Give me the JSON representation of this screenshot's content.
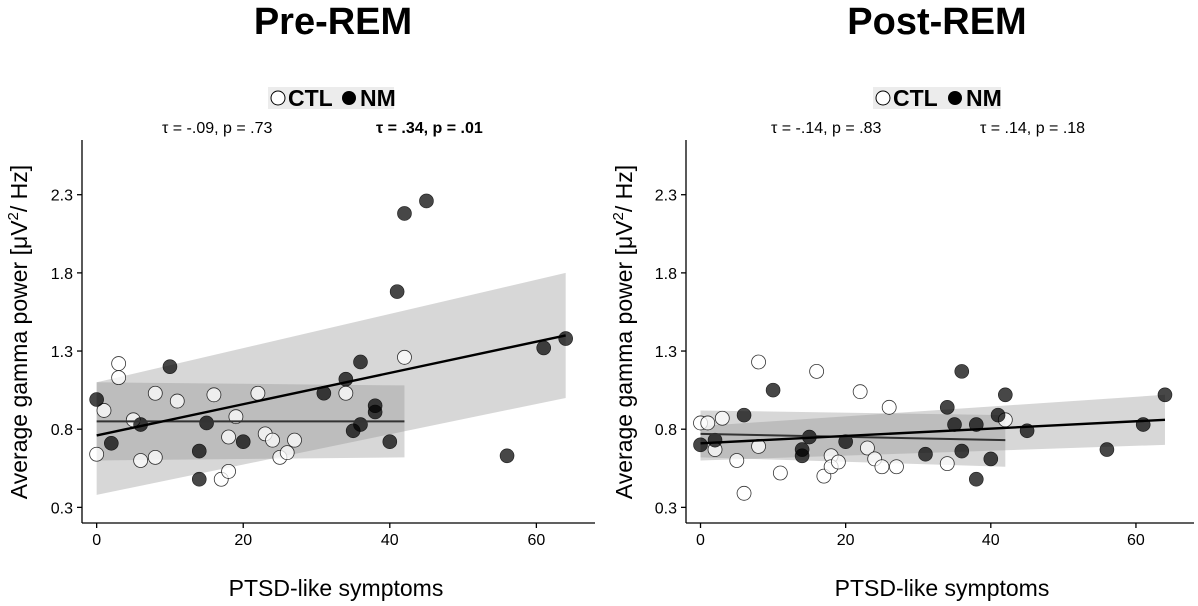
{
  "chart_data": [
    {
      "type": "scatter",
      "title": "Pre-REM",
      "xlabel": "PTSD-like symptoms",
      "ylabel_main": "Average gamma power [μV",
      "ylabel_sup": "2",
      "ylabel_tail": "/ Hz]",
      "xlim": [
        -2,
        68
      ],
      "ylim": [
        0.2,
        2.65
      ],
      "xticks": [
        0,
        20,
        40,
        60
      ],
      "yticks": [
        0.3,
        0.8,
        1.3,
        1.8,
        2.3
      ],
      "grid": false,
      "legend": {
        "position": "top-center",
        "entries": [
          {
            "label": "CTL",
            "marker": "open-circle"
          },
          {
            "label": "NM",
            "marker": "filled-circle"
          }
        ]
      },
      "annotations": [
        {
          "text": "τ = -.09, p = .73",
          "bold": false,
          "series": "CTL"
        },
        {
          "text": "τ = .34, p = .01",
          "bold": true,
          "series": "NM"
        }
      ],
      "series": [
        {
          "name": "CTL",
          "marker": "open",
          "points": [
            [
              0,
              0.64
            ],
            [
              1,
              0.92
            ],
            [
              3,
              1.13
            ],
            [
              3,
              1.22
            ],
            [
              5,
              0.86
            ],
            [
              6,
              0.6
            ],
            [
              8,
              1.03
            ],
            [
              8,
              0.62
            ],
            [
              11,
              0.98
            ],
            [
              16,
              1.02
            ],
            [
              17,
              0.48
            ],
            [
              18,
              0.53
            ],
            [
              18,
              0.75
            ],
            [
              19,
              0.88
            ],
            [
              22,
              1.03
            ],
            [
              23,
              0.77
            ],
            [
              24,
              0.73
            ],
            [
              25,
              0.62
            ],
            [
              26,
              0.65
            ],
            [
              27,
              0.73
            ],
            [
              34,
              1.03
            ],
            [
              42,
              1.26
            ]
          ],
          "fit": {
            "x": [
              0,
              42
            ],
            "y": [
              0.85,
              0.85
            ]
          },
          "ci_lower": [
            0.6,
            0.62
          ],
          "ci_upper": [
            1.1,
            1.08
          ]
        },
        {
          "name": "NM",
          "marker": "filled",
          "points": [
            [
              0,
              0.99
            ],
            [
              2,
              0.71
            ],
            [
              6,
              0.83
            ],
            [
              10,
              1.2
            ],
            [
              14,
              0.48
            ],
            [
              14,
              0.66
            ],
            [
              15,
              0.84
            ],
            [
              20,
              0.72
            ],
            [
              31,
              1.03
            ],
            [
              34,
              1.12
            ],
            [
              35,
              0.79
            ],
            [
              36,
              0.83
            ],
            [
              36,
              1.23
            ],
            [
              38,
              0.91
            ],
            [
              38,
              0.95
            ],
            [
              40,
              0.72
            ],
            [
              41,
              1.68
            ],
            [
              42,
              2.18
            ],
            [
              45,
              2.26
            ],
            [
              56,
              0.63
            ],
            [
              61,
              1.32
            ],
            [
              64,
              1.38
            ]
          ],
          "fit": {
            "x": [
              0,
              64
            ],
            "y": [
              0.76,
              1.4
            ]
          },
          "ci_lower": [
            0.38,
            1.0
          ],
          "ci_upper": [
            1.1,
            1.8
          ]
        }
      ]
    },
    {
      "type": "scatter",
      "title": "Post-REM",
      "xlabel": "PTSD-like symptoms",
      "ylabel_main": "Average gamma power [μV",
      "ylabel_sup": "2",
      "ylabel_tail": "/ Hz]",
      "xlim": [
        -2,
        68
      ],
      "ylim": [
        0.2,
        2.65
      ],
      "xticks": [
        0,
        20,
        40,
        60
      ],
      "yticks": [
        0.3,
        0.8,
        1.3,
        1.8,
        2.3
      ],
      "grid": false,
      "legend": {
        "position": "top-center",
        "entries": [
          {
            "label": "CTL",
            "marker": "open-circle"
          },
          {
            "label": "NM",
            "marker": "filled-circle"
          }
        ]
      },
      "annotations": [
        {
          "text": "τ = -.14, p = .83",
          "bold": false,
          "series": "CTL"
        },
        {
          "text": "τ = .14, p = .18",
          "bold": false,
          "series": "NM"
        }
      ],
      "series": [
        {
          "name": "CTL",
          "marker": "open",
          "points": [
            [
              0,
              0.84
            ],
            [
              1,
              0.84
            ],
            [
              2,
              0.67
            ],
            [
              3,
              0.87
            ],
            [
              5,
              0.6
            ],
            [
              6,
              0.39
            ],
            [
              8,
              1.23
            ],
            [
              8,
              0.69
            ],
            [
              11,
              0.52
            ],
            [
              16,
              1.17
            ],
            [
              17,
              0.5
            ],
            [
              18,
              0.63
            ],
            [
              18,
              0.56
            ],
            [
              19,
              0.59
            ],
            [
              22,
              1.04
            ],
            [
              23,
              0.68
            ],
            [
              24,
              0.61
            ],
            [
              25,
              0.56
            ],
            [
              26,
              0.94
            ],
            [
              27,
              0.56
            ],
            [
              34,
              0.58
            ],
            [
              42,
              0.86
            ]
          ],
          "fit": {
            "x": [
              0,
              42
            ],
            "y": [
              0.77,
              0.73
            ]
          },
          "ci_lower": [
            0.62,
            0.56
          ],
          "ci_upper": [
            0.92,
            0.89
          ]
        },
        {
          "name": "NM",
          "marker": "filled",
          "points": [
            [
              0,
              0.7
            ],
            [
              2,
              0.73
            ],
            [
              6,
              0.89
            ],
            [
              10,
              1.05
            ],
            [
              14,
              0.63
            ],
            [
              14,
              0.67
            ],
            [
              15,
              0.75
            ],
            [
              20,
              0.72
            ],
            [
              31,
              0.64
            ],
            [
              34,
              0.94
            ],
            [
              35,
              0.83
            ],
            [
              36,
              0.66
            ],
            [
              36,
              1.17
            ],
            [
              38,
              0.48
            ],
            [
              38,
              0.83
            ],
            [
              40,
              0.61
            ],
            [
              41,
              0.89
            ],
            [
              42,
              1.02
            ],
            [
              45,
              0.79
            ],
            [
              56,
              0.67
            ],
            [
              61,
              0.83
            ],
            [
              64,
              1.02
            ]
          ],
          "fit": {
            "x": [
              0,
              64
            ],
            "y": [
              0.71,
              0.86
            ]
          },
          "ci_lower": [
            0.6,
            0.7
          ],
          "ci_upper": [
            0.82,
            1.02
          ]
        }
      ]
    }
  ]
}
